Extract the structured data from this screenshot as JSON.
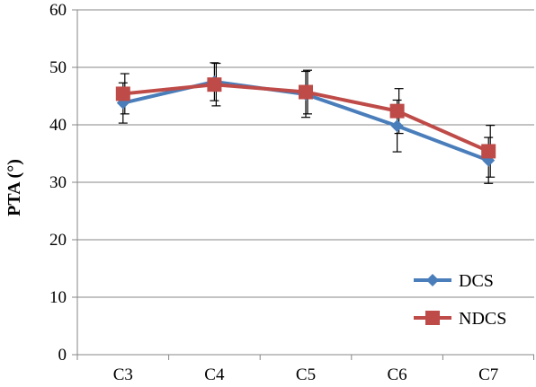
{
  "chart_data": {
    "type": "line",
    "categories": [
      "C3",
      "C4",
      "C5",
      "C6",
      "C7"
    ],
    "ylabel": "PTA (°)",
    "xlabel": "",
    "title": "",
    "ylim": [
      0,
      60
    ],
    "yticks": [
      0,
      10,
      20,
      30,
      40,
      50,
      60
    ],
    "grid": true,
    "legend_position": "bottom-right",
    "error_bars": true,
    "series": [
      {
        "name": "DCS",
        "color": "#4a7ebb",
        "marker": "diamond",
        "values": [
          43.8,
          47.5,
          45.3,
          39.8,
          33.8
        ],
        "errors": [
          3.5,
          3.3,
          4.0,
          4.5,
          4.0
        ]
      },
      {
        "name": "NDCS",
        "color": "#be4b48",
        "marker": "square",
        "values": [
          45.4,
          47.0,
          45.7,
          42.4,
          35.4
        ],
        "errors": [
          3.5,
          3.7,
          3.8,
          3.9,
          4.5
        ]
      }
    ]
  }
}
